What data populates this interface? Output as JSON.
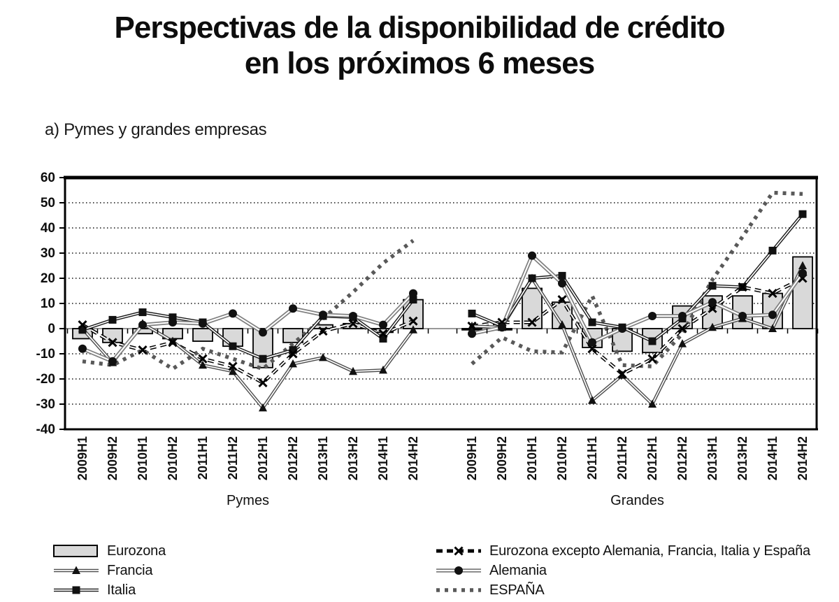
{
  "chart_data": {
    "type": "combo-bar-line",
    "title": "Perspectivas de la disponibilidad de crédito\nen los próximos 6 meses",
    "subtitle": "a) Pymes y grandes empresas",
    "ylim": [
      -40,
      60
    ],
    "yticks": [
      60,
      50,
      40,
      30,
      20,
      10,
      0,
      -10,
      -20,
      -30,
      -40
    ],
    "grid": "dotted-horizontal",
    "legend_position": "bottom",
    "categories": [
      "2009H1",
      "2009H2",
      "2010H1",
      "2010H2",
      "2011H1",
      "2011H2",
      "2012H1",
      "2012H2",
      "2013H1",
      "2013H2",
      "2014H1",
      "2014H2"
    ],
    "series_meta": [
      {
        "id": "eurozona",
        "name": "Eurozona",
        "type": "bar",
        "fill": "#d9d9d9",
        "stroke": "#000000"
      },
      {
        "id": "francia",
        "name": "Francia",
        "type": "line",
        "color": "#4d4d4d",
        "marker": "triangle",
        "marker_color": "#111111"
      },
      {
        "id": "italia",
        "name": "Italia",
        "type": "line",
        "color": "#1a1a1a",
        "marker": "square",
        "marker_color": "#111111"
      },
      {
        "id": "eurozona_excepto",
        "name": "Eurozona  excepto Alemania, Francia, Italia y España",
        "type": "line-dashed",
        "color": "#000000",
        "marker": "x",
        "marker_color": "#000000"
      },
      {
        "id": "alemania",
        "name": "Alemania",
        "type": "line",
        "color": "#7f7f7f",
        "marker": "circle",
        "marker_color": "#111111"
      },
      {
        "id": "espana",
        "name": "ESPAÑA",
        "type": "line-dotted",
        "color": "#595959",
        "marker": "none"
      }
    ],
    "panels": [
      {
        "label": "Pymes",
        "series": {
          "eurozona": [
            -4,
            -5.5,
            -2,
            -4,
            -5,
            -7,
            -15.5,
            -5.5,
            1.5,
            2,
            -1.5,
            11.5
          ],
          "francia": [
            0,
            -13.5,
            2,
            -5,
            -14.5,
            -17,
            -31.5,
            -14,
            -11.5,
            -17,
            -16.5,
            -0.5
          ],
          "italia": [
            -0.5,
            3.5,
            6.5,
            4.5,
            2.5,
            -7,
            -12,
            -8.5,
            5,
            4.5,
            -4,
            11.5
          ],
          "eurozona_excepto": [
            1.5,
            -5.5,
            -8.5,
            -5.5,
            -12,
            -15,
            -21.5,
            -10,
            -1,
            2,
            -2,
            3
          ],
          "alemania": [
            -8,
            -13,
            1.5,
            2.5,
            2,
            6,
            -1.5,
            8,
            5.5,
            5,
            1.5,
            14
          ],
          "espana": [
            -13,
            -14.5,
            -8.5,
            -16,
            -8,
            -12,
            -16,
            -6,
            4,
            14.5,
            26,
            35
          ]
        }
      },
      {
        "label": "Grandes",
        "series": {
          "eurozona": [
            -0.5,
            -0.5,
            16,
            10.5,
            -7.5,
            -9,
            -9.5,
            9,
            13,
            13,
            14,
            28.5
          ],
          "francia": [
            1,
            0.5,
            20,
            1.5,
            -28.5,
            -18.5,
            -30,
            -6,
            0.5,
            4,
            0,
            25
          ],
          "italia": [
            6,
            1,
            20,
            21,
            2.5,
            0.5,
            -5,
            4,
            17,
            16.5,
            31,
            45.5
          ],
          "eurozona_excepto": [
            1,
            2.5,
            2.5,
            11.5,
            -8,
            -18,
            -12,
            0,
            8,
            16.5,
            14,
            20
          ],
          "alemania": [
            -2,
            0.5,
            29,
            18,
            -5.5,
            0,
            5,
            5,
            10.5,
            5,
            5.5,
            22
          ],
          "espana": [
            -14,
            -3.5,
            -9,
            -9.5,
            13,
            -14.5,
            -15,
            -2,
            19.5,
            36.5,
            54,
            53.5
          ]
        }
      }
    ],
    "legend_columns": [
      [
        "eurozona",
        "francia",
        "italia"
      ],
      [
        "eurozona_excepto",
        "alemania",
        "espana"
      ]
    ]
  }
}
